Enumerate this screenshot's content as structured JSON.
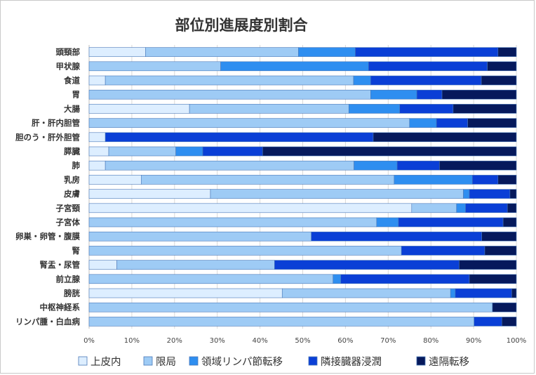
{
  "chart_data": {
    "type": "bar",
    "orientation": "horizontal",
    "stacked": "percent",
    "title": "部位別進展度別割合",
    "categories": [
      "頭頸部",
      "甲状腺",
      "食道",
      "胃",
      "大腸",
      "肝・肝内胆管",
      "胆のう・肝外胆管",
      "膵臓",
      "肺",
      "乳房",
      "皮膚",
      "子宮頸",
      "子宮体",
      "卵巣・卵管・腹膜",
      "腎",
      "腎盂・尿管",
      "前立腺",
      "膀胱",
      "中枢神経系",
      "リンパ腫・白血病"
    ],
    "series": [
      {
        "name": "上皮内",
        "color": "#ddeeff",
        "values": [
          13.2,
          0,
          3.8,
          0,
          23.5,
          0,
          3.8,
          4.6,
          3.8,
          12.2,
          28.4,
          75.5,
          0,
          0,
          0,
          6.5,
          0,
          45.2,
          0,
          0
        ]
      },
      {
        "name": "限局",
        "color": "#9ecbf5",
        "values": [
          35.8,
          30.8,
          58.1,
          65.9,
          37.3,
          75.0,
          0,
          15.7,
          58.2,
          59.2,
          59.2,
          10.5,
          67.3,
          52.0,
          73.1,
          36.9,
          57.1,
          39.4,
          94.4,
          90.1
        ]
      },
      {
        "name": "領域リンパ節転移",
        "color": "#2e8ef0",
        "values": [
          13.3,
          34.6,
          4.0,
          10.8,
          11.9,
          6.3,
          0,
          6.3,
          10.1,
          18.3,
          1.4,
          2.1,
          5.1,
          0,
          0,
          0,
          1.8,
          1.1,
          0,
          0
        ]
      },
      {
        "name": "隣接臓器浸潤",
        "color": "#0a3fd6",
        "values": [
          33.4,
          27.8,
          25.9,
          5.9,
          12.5,
          7.3,
          62.7,
          14.0,
          9.9,
          6.0,
          9.5,
          9.8,
          24.5,
          39.9,
          19.5,
          43.2,
          30.1,
          13.2,
          0,
          6.5
        ]
      },
      {
        "name": "遠隔転移",
        "color": "#06195c",
        "values": [
          4.3,
          6.8,
          8.2,
          17.4,
          14.8,
          11.4,
          33.5,
          59.4,
          18.0,
          4.3,
          1.5,
          2.1,
          3.1,
          8.1,
          7.4,
          13.4,
          11.0,
          1.1,
          5.6,
          3.4
        ]
      }
    ],
    "x_ticks": [
      "0%",
      "10%",
      "20%",
      "30%",
      "40%",
      "50%",
      "60%",
      "70%",
      "80%",
      "90%",
      "100%"
    ],
    "xlim": [
      0,
      100
    ],
    "grid": "vertical",
    "legend": "bottom"
  }
}
